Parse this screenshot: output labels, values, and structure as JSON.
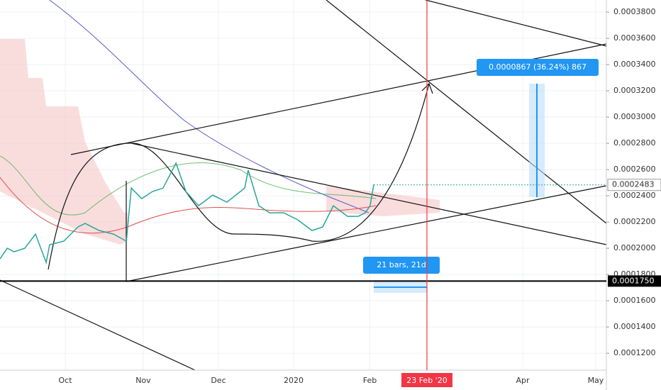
{
  "chart_data": {
    "type": "line",
    "x": [
      0,
      2.9,
      5.7,
      10,
      14.3,
      18.6,
      20,
      25.7,
      31.4,
      34.3,
      40,
      45.7,
      50.9,
      52.9,
      57.1,
      61.4,
      65.7,
      70.9,
      74.9,
      80,
      85.7,
      91.4,
      98.6,
      100,
      104.3,
      108.6,
      114.3,
      120,
      125.7,
      130,
      134.3,
      140,
      144.3,
      147.1,
      149.1,
      150.6
    ],
    "series": [
      {
        "color": "#26a69a",
        "values": [
          0.0001919,
          0.0002,
          0.0001973,
          0.0002,
          0.0002108,
          0.0001892,
          0.0002027,
          0.0002054,
          0.0002162,
          0.0002189,
          0.0002135,
          0.0002108,
          0.0002054,
          0.0002459,
          0.0002378,
          0.0002432,
          0.0002459,
          0.0002649,
          0.0002432,
          0.0002324,
          0.0002405,
          0.0002351,
          0.0002459,
          0.0002595,
          0.0002324,
          0.000227,
          0.000227,
          0.0002216,
          0.0002135,
          0.0002162,
          0.0002324,
          0.0002243,
          0.0002243,
          0.000227,
          0.0002324,
          0.0002486
        ]
      }
    ],
    "xlim": [
      0,
      244.3
    ],
    "xticks": [
      {
        "value": 26.3,
        "label": "Oct"
      },
      {
        "value": 57.7,
        "label": "Nov"
      },
      {
        "value": 88,
        "label": "Dec"
      },
      {
        "value": 118.3,
        "label": "2020"
      },
      {
        "value": 149,
        "label": "Feb"
      },
      {
        "value": 210.6,
        "label": "Apr"
      },
      {
        "value": 240,
        "label": "May"
      }
    ],
    "ylim": [
      0.0001071,
      0.0003892
    ],
    "yticks": [
      {
        "value": 0.00012,
        "label": "0.0001200"
      },
      {
        "value": 0.00014,
        "label": "0.0001400"
      },
      {
        "value": 0.00016,
        "label": "0.0001600"
      },
      {
        "value": 0.00018,
        "label": "0.0001800"
      },
      {
        "value": 0.0002,
        "label": "0.0002000"
      },
      {
        "value": 0.00022,
        "label": "0.0002200"
      },
      {
        "value": 0.00024,
        "label": "0.0002400"
      },
      {
        "value": 0.00026,
        "label": "0.0002600"
      },
      {
        "value": 0.00028,
        "label": "0.0002800"
      },
      {
        "value": 0.0003,
        "label": "0.0003000"
      },
      {
        "value": 0.00032,
        "label": "0.0003200"
      },
      {
        "value": 0.00034,
        "label": "0.0003400"
      },
      {
        "value": 0.00036,
        "label": "0.0003600"
      },
      {
        "value": 0.00038,
        "label": "0.0003800"
      }
    ],
    "last_price": {
      "value": 0.0002483,
      "label": "0.0002483"
    },
    "support": {
      "value": 0.000175,
      "label": "0.0001750"
    },
    "marker": {
      "value": 172,
      "label": "23 Feb '20"
    },
    "annotations": [
      "0.0000867 (36.24%) 867",
      "21 bars, 21d"
    ],
    "grid": true
  }
}
